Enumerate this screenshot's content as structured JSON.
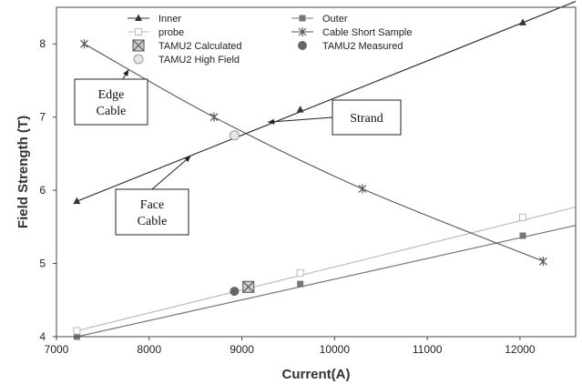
{
  "chart_data": {
    "type": "line",
    "xlabel": "Current(A)",
    "ylabel": "Field Strength (T)",
    "xlim": [
      7000,
      12600
    ],
    "ylim": [
      4,
      8.5
    ],
    "xticks": [
      7000,
      8000,
      9000,
      10000,
      11000,
      12000
    ],
    "yticks": [
      4,
      5,
      6,
      7,
      8
    ],
    "grid": false,
    "legend_position": "top",
    "series": [
      {
        "name": "Inner",
        "marker": "triangle",
        "color": "#333333",
        "x": [
          7220,
          9630,
          12030
        ],
        "y": [
          5.85,
          7.1,
          8.29
        ],
        "line_x": [
          7220,
          12600
        ],
        "line_y": [
          5.85,
          8.58
        ]
      },
      {
        "name": "Outer",
        "marker": "square",
        "color": "#777777",
        "x": [
          7220,
          9630,
          12030
        ],
        "y": [
          4.0,
          4.72,
          5.38
        ],
        "line_x": [
          7220,
          12600
        ],
        "line_y": [
          4.0,
          5.52
        ]
      },
      {
        "name": "probe",
        "marker": "open-square",
        "color": "#bbbbbb",
        "x": [
          7220,
          9630,
          12030
        ],
        "y": [
          4.08,
          4.87,
          5.63
        ],
        "line_x": [
          7220,
          12600
        ],
        "line_y": [
          4.08,
          5.77
        ]
      },
      {
        "name": "Cable Short Sample",
        "marker": "star",
        "color": "#555555",
        "x": [
          7300,
          8700,
          10300,
          12250
        ],
        "y": [
          8.0,
          7.0,
          6.02,
          5.03
        ]
      },
      {
        "name": "TAMU2 Calculated",
        "marker": "boxed-x",
        "color": "#666666",
        "x": [
          9070
        ],
        "y": [
          4.68
        ]
      },
      {
        "name": "TAMU2 High Field",
        "marker": "open-circle",
        "color": "#999999",
        "x": [
          8920
        ],
        "y": [
          6.75
        ]
      },
      {
        "name": "TAMU2 Measured",
        "marker": "filled-circle",
        "color": "#666666",
        "x": [
          8920
        ],
        "y": [
          4.62
        ]
      }
    ],
    "annotations": [
      {
        "lines": [
          "Edge",
          "Cable"
        ],
        "arrow_to": [
          7780,
          7.65
        ]
      },
      {
        "lines": [
          "Face",
          "Cable"
        ],
        "arrow_to": [
          8450,
          6.47
        ]
      },
      {
        "lines": [
          "Strand"
        ],
        "arrow_to": [
          9280,
          6.93
        ]
      }
    ]
  }
}
